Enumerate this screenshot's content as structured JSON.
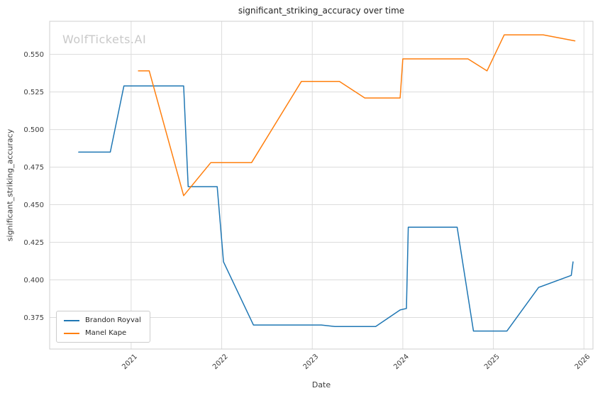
{
  "chart_data": {
    "type": "line",
    "title": "significant_striking_accuracy over time",
    "xlabel": "Date",
    "ylabel": "significant_striking_accuracy",
    "watermark": "WolfTickets.AI",
    "grid": true,
    "legend_position": "lower left",
    "xlim": [
      2020.1,
      2026.1
    ],
    "ylim": [
      0.354,
      0.572
    ],
    "x_ticks": {
      "values": [
        2021,
        2022,
        2023,
        2024,
        2025,
        2026
      ],
      "labels": [
        "2021",
        "2022",
        "2023",
        "2024",
        "2025",
        "2026"
      ]
    },
    "y_ticks": {
      "values": [
        0.375,
        0.4,
        0.425,
        0.45,
        0.475,
        0.5,
        0.525,
        0.55
      ],
      "labels": [
        "0.375",
        "0.400",
        "0.425",
        "0.450",
        "0.475",
        "0.500",
        "0.525",
        "0.550"
      ]
    },
    "series": [
      {
        "name": "Brandon Royval",
        "color": "#1f77b4",
        "points": [
          [
            2020.42,
            0.485
          ],
          [
            2020.77,
            0.485
          ],
          [
            2020.92,
            0.529
          ],
          [
            2021.58,
            0.529
          ],
          [
            2021.63,
            0.462
          ],
          [
            2021.95,
            0.462
          ],
          [
            2022.02,
            0.412
          ],
          [
            2022.35,
            0.37
          ],
          [
            2023.1,
            0.37
          ],
          [
            2023.25,
            0.369
          ],
          [
            2023.7,
            0.369
          ],
          [
            2023.97,
            0.38
          ],
          [
            2024.04,
            0.381
          ],
          [
            2024.06,
            0.435
          ],
          [
            2024.6,
            0.435
          ],
          [
            2024.78,
            0.366
          ],
          [
            2025.15,
            0.366
          ],
          [
            2025.5,
            0.395
          ],
          [
            2025.86,
            0.403
          ],
          [
            2025.88,
            0.412
          ]
        ]
      },
      {
        "name": "Manel Kape",
        "color": "#ff7f0e",
        "points": [
          [
            2021.08,
            0.539
          ],
          [
            2021.2,
            0.539
          ],
          [
            2021.58,
            0.456
          ],
          [
            2021.88,
            0.478
          ],
          [
            2022.33,
            0.478
          ],
          [
            2022.88,
            0.532
          ],
          [
            2023.3,
            0.532
          ],
          [
            2023.58,
            0.521
          ],
          [
            2023.97,
            0.521
          ],
          [
            2024.0,
            0.547
          ],
          [
            2024.72,
            0.547
          ],
          [
            2024.93,
            0.539
          ],
          [
            2025.12,
            0.563
          ],
          [
            2025.55,
            0.563
          ],
          [
            2025.9,
            0.559
          ]
        ]
      }
    ]
  }
}
